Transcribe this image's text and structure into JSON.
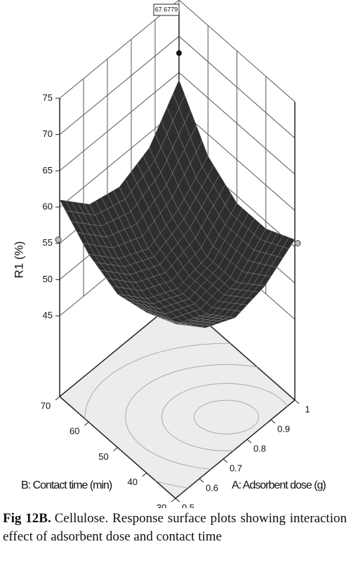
{
  "chart_data": {
    "type": "surface3d",
    "x_label": "A: Adsorbent dose (g)",
    "y_label": "B: Contact time (min)",
    "z_label": "R1 (%)",
    "annotation": 67.6779,
    "xlim": [
      0.5,
      1
    ],
    "ylim": [
      30,
      70
    ],
    "zlim": [
      45,
      75
    ],
    "xticks": [
      0.5,
      0.6,
      0.7,
      0.8,
      0.9,
      1
    ],
    "yticks": [
      30,
      40,
      50,
      60,
      70
    ],
    "zticks": [
      45,
      50,
      55,
      60,
      65,
      70,
      75
    ],
    "x": [
      0.5,
      0.625,
      0.75,
      0.875,
      1
    ],
    "y": [
      30,
      40,
      50,
      60,
      70
    ],
    "z": [
      [
        58,
        54,
        52,
        53,
        56
      ],
      [
        56,
        51,
        49,
        50,
        54
      ],
      [
        55,
        51,
        49,
        50,
        54
      ],
      [
        57,
        53,
        51,
        53,
        57
      ],
      [
        61,
        57,
        56,
        58,
        64
      ]
    ],
    "color": "#2e2e2e",
    "caption_label": "Fig 12B.",
    "caption_text": "Cellulose. Response surface plots showing interaction effect of adsorbent dose and contact time"
  }
}
